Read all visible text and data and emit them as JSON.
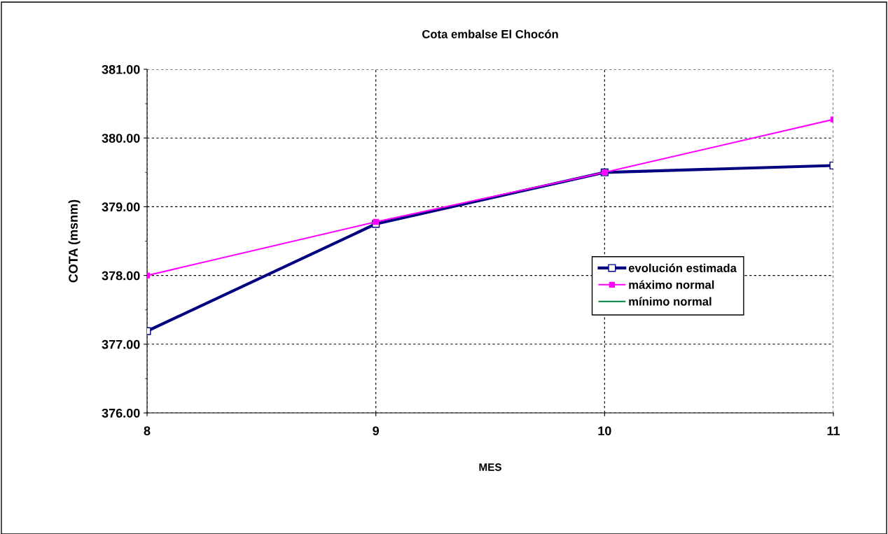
{
  "chart_data": {
    "type": "line",
    "title": "Cota embalse El Chocón",
    "xlabel": "MES",
    "ylabel": "COTA (msnm)",
    "x": [
      8,
      9,
      10,
      11
    ],
    "xlim": [
      8,
      11
    ],
    "xticks": [
      8,
      9,
      10,
      11
    ],
    "ylim": [
      376,
      381
    ],
    "yticks": [
      {
        "value": 376,
        "label": "376.00"
      },
      {
        "value": 377,
        "label": "377.00"
      },
      {
        "value": 378,
        "label": "378.00"
      },
      {
        "value": 379,
        "label": "379.00"
      },
      {
        "value": 380,
        "label": "380.00"
      },
      {
        "value": 381,
        "label": "381.00"
      }
    ],
    "grid": true,
    "legend": "right",
    "series": [
      {
        "name": "evolución estimada",
        "color": "#000080",
        "values": [
          377.19,
          378.75,
          379.5,
          379.6
        ],
        "marker": "square"
      },
      {
        "name": "máximo normal",
        "color": "#ff00ff",
        "values": [
          378.0,
          378.78,
          379.5,
          380.27
        ],
        "marker": "square"
      },
      {
        "name": "mínimo normal",
        "color": "#008040",
        "values": [
          null,
          null,
          null,
          null
        ],
        "marker": "none"
      }
    ]
  }
}
